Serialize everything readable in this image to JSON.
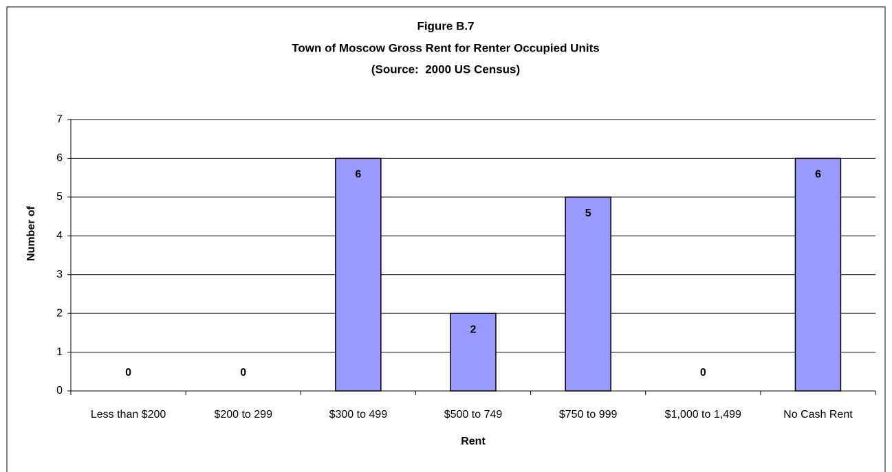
{
  "chart_data": {
    "type": "bar",
    "title": "Figure B.7",
    "subtitle": "Town of Moscow Gross Rent for Renter Occupied Units",
    "note": "(Source:  2000 US Census)",
    "x_label": "Rent",
    "y_label": "Number of",
    "categories": [
      "Less than $200",
      "$200 to 299",
      "$300 to 499",
      "$500 to 749",
      "$750 to 999",
      "$1,000 to 1,499",
      "No Cash Rent"
    ],
    "values": [
      0,
      0,
      6,
      2,
      5,
      0,
      6
    ],
    "color": "#9999ff",
    "ylim": [
      0,
      7
    ],
    "yticks": [
      0,
      1,
      2,
      3,
      4,
      5,
      6,
      7
    ],
    "grid": true
  }
}
